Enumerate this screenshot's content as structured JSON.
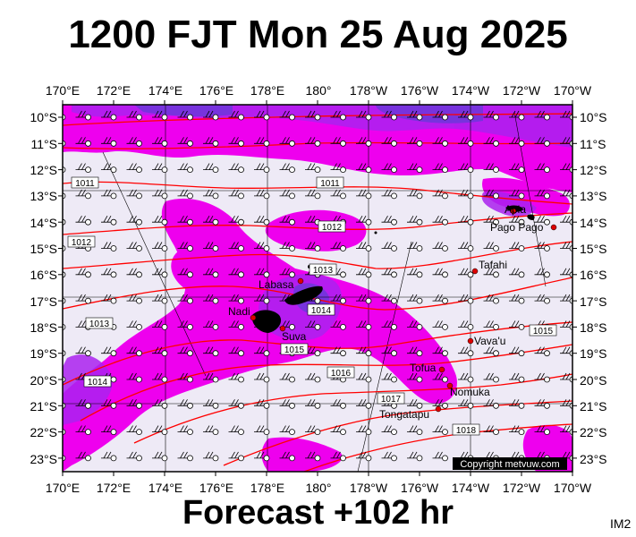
{
  "title": "1200 FJT Mon 25 Aug 2025",
  "forecast_label": "Forecast +102 hr",
  "image_code": "IM2",
  "copyright": "Copyright metvuw.com",
  "map": {
    "lon_labels": [
      "170°E",
      "172°E",
      "174°E",
      "176°E",
      "178°E",
      "180°",
      "178°W",
      "176°W",
      "174°W",
      "172°W",
      "170°W"
    ],
    "lat_labels": [
      "10°S",
      "11°S",
      "12°S",
      "13°S",
      "14°S",
      "15°S",
      "16°S",
      "17°S",
      "18°S",
      "19°S",
      "20°S",
      "21°S",
      "22°S",
      "23°S"
    ],
    "places": [
      {
        "name": "Apia",
        "lon": -171.8,
        "lat": -13.8
      },
      {
        "name": "Pago Pago",
        "lon": -170.7,
        "lat": -14.3
      },
      {
        "name": "Tafahi",
        "lon": -173.7,
        "lat": -15.9
      },
      {
        "name": "Labasa",
        "lon": 179.4,
        "lat": -16.4
      },
      {
        "name": "Nadi",
        "lon": 177.4,
        "lat": -17.8
      },
      {
        "name": "Suva",
        "lon": 178.4,
        "lat": -18.1
      },
      {
        "name": "Vava'u",
        "lon": -174.0,
        "lat": -18.6
      },
      {
        "name": "Tofua",
        "lon": -175.1,
        "lat": -19.7
      },
      {
        "name": "Nomuka",
        "lon": -174.8,
        "lat": -20.3
      },
      {
        "name": "Tongatapu",
        "lon": -175.2,
        "lat": -21.2
      }
    ],
    "isobar_labels": [
      "1011",
      "1011",
      "1012",
      "1012",
      "1013",
      "1013",
      "1014",
      "1014",
      "1015",
      "1015",
      "1016",
      "1017",
      "1018"
    ],
    "colors": {
      "rain_light": "#eeeaf6",
      "rain_moderate": "#ee00ee",
      "rain_heavy": "#aa22ee",
      "rain_very_heavy": "#7733dd",
      "isobar": "#ff0000",
      "frame": "#000000"
    }
  }
}
